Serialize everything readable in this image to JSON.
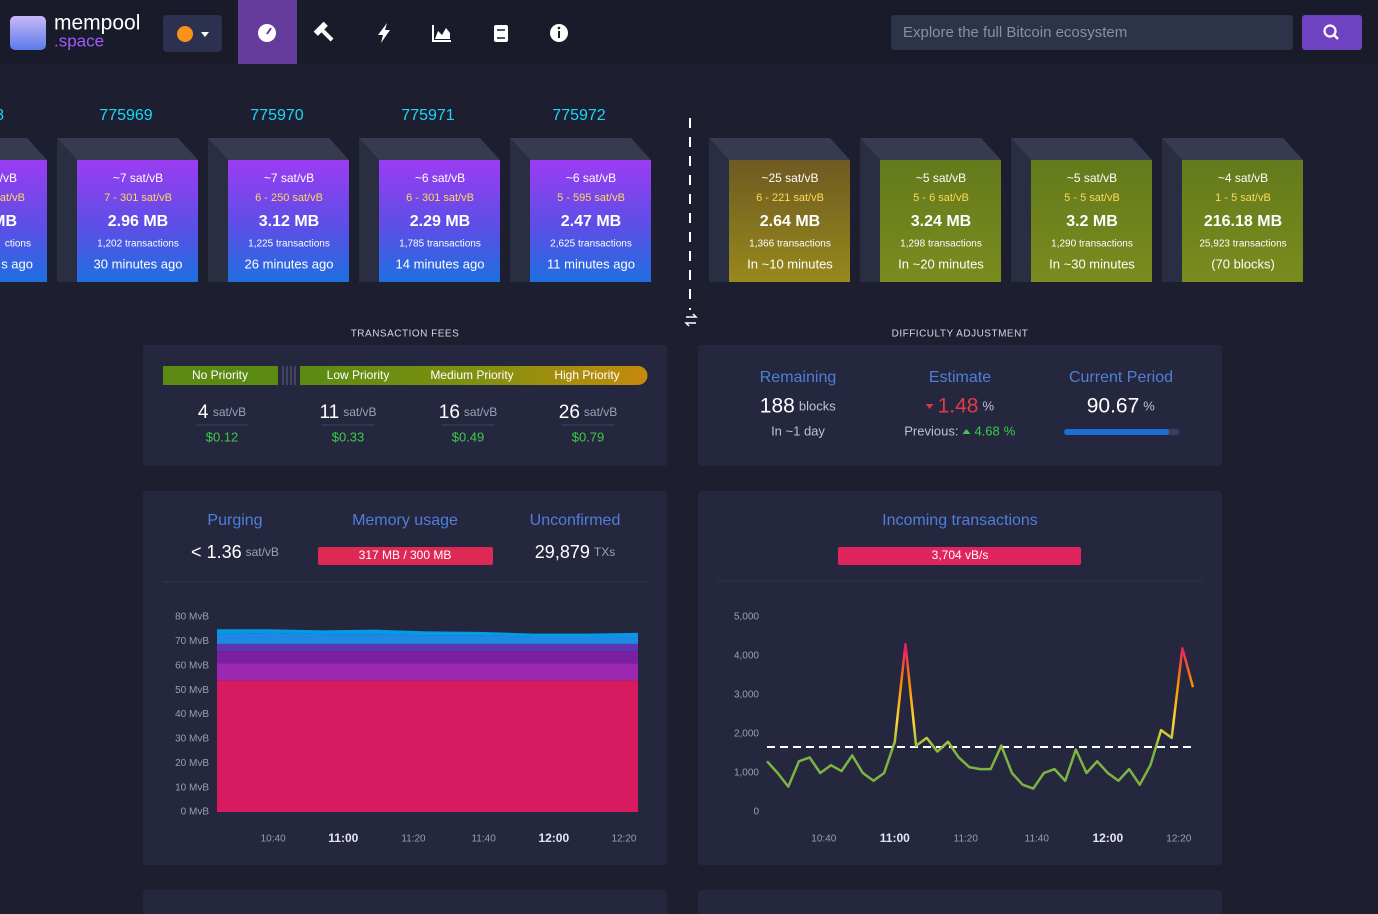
{
  "header": {
    "logo_name": "mempool",
    "logo_suffix": ".space",
    "search_placeholder": "Explore the full Bitcoin ecosystem"
  },
  "mined_blocks": [
    {
      "height": 8,
      "fee": "/vB",
      "range": "at/vB",
      "size": "MB",
      "txs": "ctions",
      "time": "s ago"
    },
    {
      "height": 775969,
      "fee": "~7 sat/vB",
      "range": "7 - 301 sat/vB",
      "size": "2.96 MB",
      "txs": "1,202 transactions",
      "time": "30 minutes ago"
    },
    {
      "height": 775970,
      "fee": "~7 sat/vB",
      "range": "6 - 250 sat/vB",
      "size": "3.12 MB",
      "txs": "1,225 transactions",
      "time": "26 minutes ago"
    },
    {
      "height": 775971,
      "fee": "~6 sat/vB",
      "range": "6 - 301 sat/vB",
      "size": "2.29 MB",
      "txs": "1,785 transactions",
      "time": "14 minutes ago"
    },
    {
      "height": 775972,
      "fee": "~6 sat/vB",
      "range": "5 - 595 sat/vB",
      "size": "2.47 MB",
      "txs": "2,625 transactions",
      "time": "11 minutes ago"
    }
  ],
  "projected_blocks": [
    {
      "fee": "~25 sat/vB",
      "range": "6 - 221 sat/vB",
      "size": "2.64 MB",
      "txs": "1,366 transactions",
      "time": "In ~10 minutes"
    },
    {
      "fee": "~5 sat/vB",
      "range": "5 - 6 sat/vB",
      "size": "3.24 MB",
      "txs": "1,298 transactions",
      "time": "In ~20 minutes"
    },
    {
      "fee": "~5 sat/vB",
      "range": "5 - 5 sat/vB",
      "size": "3.2 MB",
      "txs": "1,290 transactions",
      "time": "In ~30 minutes"
    },
    {
      "fee": "~4 sat/vB",
      "range": "1 - 5 sat/vB",
      "size": "216.18 MB",
      "txs": "25,923 transactions",
      "time": "(70 blocks)"
    }
  ],
  "fees": {
    "title": "TRANSACTION FEES",
    "unit": "sat/vB",
    "priorities": [
      {
        "label": "No Priority",
        "value": 4,
        "usd": "$0.12"
      },
      {
        "label": "Low Priority",
        "value": 11,
        "usd": "$0.33"
      },
      {
        "label": "Medium Priority",
        "value": 16,
        "usd": "$0.49"
      },
      {
        "label": "High Priority",
        "value": 26,
        "usd": "$0.79"
      }
    ]
  },
  "difficulty": {
    "title": "DIFFICULTY ADJUSTMENT",
    "remaining_label": "Remaining",
    "remaining": 188,
    "remaining_unit": "blocks",
    "remaining_eta": "In ~1 day",
    "estimate_label": "Estimate",
    "estimate": 1.48,
    "unit": "%",
    "previous_label": "Previous:",
    "previous": 4.68,
    "period_label": "Current Period",
    "period": 90.67
  },
  "mempool": {
    "purging_label": "Purging",
    "purging": "< 1.36",
    "purging_unit": "sat/vB",
    "memory_label": "Memory usage",
    "memory": "317 MB / 300 MB",
    "unconfirmed_label": "Unconfirmed",
    "unconfirmed": "29,879",
    "unconfirmed_unit": "TXs"
  },
  "incoming": {
    "label": "Incoming transactions",
    "rate": "3,704 vB/s"
  },
  "mempool_chart": {
    "type": "area",
    "x": [
      "10:24",
      "10:39",
      "10:54",
      "11:09",
      "11:24",
      "11:39",
      "11:54",
      "12:09",
      "12:24"
    ],
    "series": [
      {
        "color": "#d81b60",
        "values": [
          54,
          54,
          54,
          54,
          54,
          54,
          54,
          54,
          54
        ]
      },
      {
        "color": "#9c27b0",
        "values": [
          7,
          7,
          7,
          7,
          7,
          7,
          7,
          7,
          7
        ]
      },
      {
        "color": "#7b1fa2",
        "values": [
          5,
          5,
          5,
          5,
          5,
          5,
          5,
          5,
          5
        ]
      },
      {
        "color": "#5e35b1",
        "values": [
          3,
          3,
          3,
          3,
          3,
          3,
          3,
          3,
          3
        ]
      },
      {
        "color": "#1e88e5",
        "values": [
          4,
          4.5,
          4,
          4,
          3.5,
          3.5,
          3,
          3,
          3
        ]
      },
      {
        "color": "#039be5",
        "values": [
          2,
          1.5,
          1.5,
          1.8,
          1.6,
          1.4,
          1.2,
          1.2,
          1.5
        ]
      }
    ],
    "xlim": [
      "10:24",
      "12:24"
    ],
    "xticks": [
      "10:40",
      "11:00",
      "11:20",
      "11:40",
      "12:00",
      "12:20"
    ],
    "ylim": [
      0,
      80
    ],
    "yticks": [
      {
        "value": 0,
        "label": "0 MvB"
      },
      {
        "value": 10,
        "label": "10 MvB"
      },
      {
        "value": 20,
        "label": "20 MvB"
      },
      {
        "value": 30,
        "label": "30 MvB"
      },
      {
        "value": 40,
        "label": "40 MvB"
      },
      {
        "value": 50,
        "label": "50 MvB"
      },
      {
        "value": 60,
        "label": "60 MvB"
      },
      {
        "value": 70,
        "label": "70 MvB"
      },
      {
        "value": 80,
        "label": "80 MvB"
      }
    ]
  },
  "incoming_chart": {
    "type": "line",
    "x": [
      "10:24",
      "10:27",
      "10:30",
      "10:33",
      "10:36",
      "10:39",
      "10:42",
      "10:45",
      "10:48",
      "10:51",
      "10:54",
      "10:57",
      "11:00",
      "11:03",
      "11:06",
      "11:09",
      "11:12",
      "11:15",
      "11:18",
      "11:21",
      "11:24",
      "11:27",
      "11:30",
      "11:33",
      "11:36",
      "11:39",
      "11:42",
      "11:45",
      "11:48",
      "11:51",
      "11:54",
      "11:57",
      "12:00",
      "12:03",
      "12:06",
      "12:09",
      "12:12",
      "12:15",
      "12:18",
      "12:21",
      "12:24"
    ],
    "values": [
      1300,
      1000,
      650,
      1300,
      1400,
      1000,
      1200,
      1050,
      1450,
      1000,
      800,
      1000,
      1800,
      4300,
      1700,
      1900,
      1550,
      1800,
      1400,
      1150,
      1100,
      1100,
      1700,
      1000,
      700,
      600,
      1000,
      1100,
      800,
      1600,
      1000,
      1300,
      1000,
      800,
      1100,
      700,
      1200,
      2100,
      1900,
      4200,
      3200
    ],
    "threshold": 1667,
    "color_stops": [
      {
        "value": 1500,
        "color": "#7cb342"
      },
      {
        "value": 2300,
        "color": "#fdd835"
      },
      {
        "value": 3300,
        "color": "#fb8c00"
      },
      {
        "value": 4200,
        "color": "#e91e63"
      }
    ],
    "xlim": [
      "10:24",
      "12:24"
    ],
    "xticks": [
      "10:40",
      "11:00",
      "11:20",
      "11:40",
      "12:00",
      "12:20"
    ],
    "ylim": [
      0,
      5000
    ],
    "yticks": [
      0,
      {
        "value": 1000,
        "label": "1,000"
      },
      {
        "value": 2000,
        "label": "2,000"
      },
      {
        "value": 3000,
        "label": "3,000"
      },
      {
        "value": 4000,
        "label": "4,000"
      },
      {
        "value": 5000,
        "label": "5,000"
      }
    ]
  }
}
